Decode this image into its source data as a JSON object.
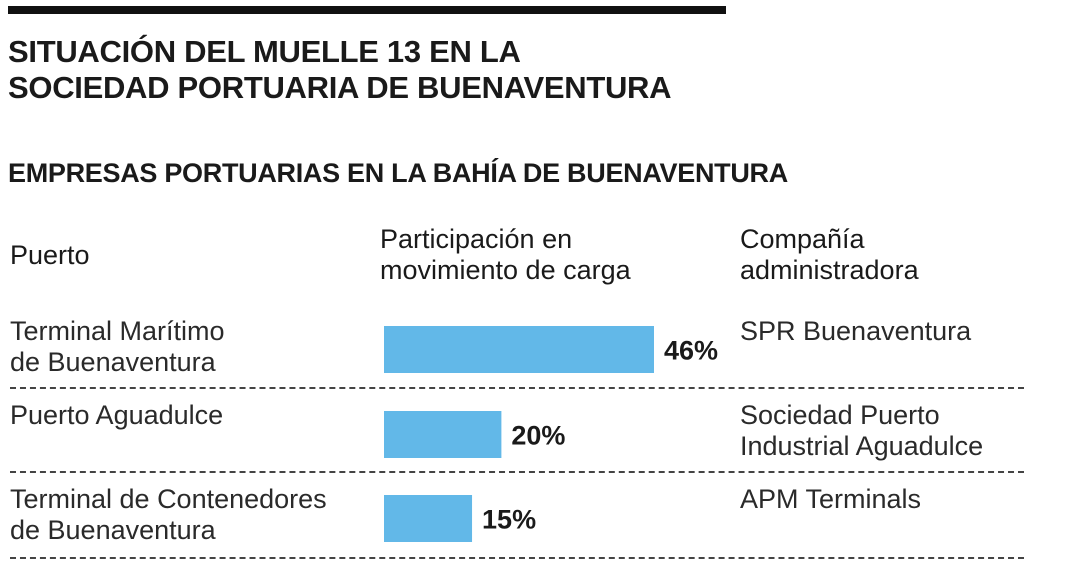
{
  "title_lines": [
    "SITUACIÓN DEL MUELLE 13 EN LA",
    "SOCIEDAD PORTUARIA DE BUENAVENTURA"
  ],
  "colors": {
    "bar": "#62b8e8",
    "text": "#1a1a1a",
    "rule": "#111111"
  },
  "chart_data": {
    "type": "bar",
    "orientation": "horizontal",
    "title": "EMPRESAS PORTUARIAS EN LA BAHÍA DE BUENAVENTURA",
    "columns": {
      "port_lines": [
        "Puerto"
      ],
      "share_lines": [
        "Participación en",
        "movimiento de carga"
      ],
      "company_lines": [
        "Compañía",
        "administradora"
      ]
    },
    "unit": "%",
    "xlim": [
      0,
      60
    ],
    "rows": [
      {
        "port_lines": [
          "Terminal Marítimo",
          "de Buenaventura"
        ],
        "value": 46,
        "label": "46%",
        "company_lines": [
          "SPR Buenaventura"
        ]
      },
      {
        "port_lines": [
          "Puerto Aguadulce"
        ],
        "value": 20,
        "label": "20%",
        "company_lines": [
          "Sociedad Puerto",
          "Industrial Aguadulce"
        ]
      },
      {
        "port_lines": [
          "Terminal de Contenedores",
          "de Buenaventura"
        ],
        "value": 15,
        "label": "15%",
        "company_lines": [
          "APM Terminals"
        ]
      }
    ]
  }
}
